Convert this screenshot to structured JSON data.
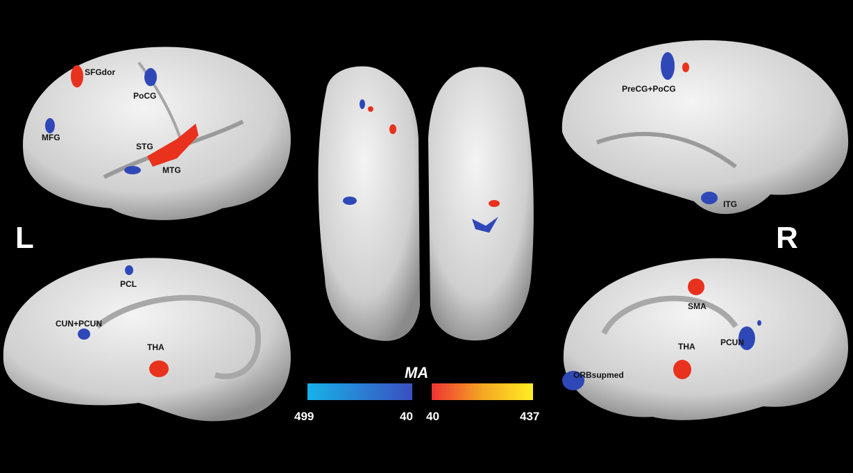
{
  "hemisphere_labels": {
    "left": "L",
    "right": "R"
  },
  "regions": {
    "left_lateral": [
      "SFGdor",
      "PoCG",
      "MFG",
      "STG",
      "MTG"
    ],
    "right_lateral": [
      "PreCG+PoCG",
      "ITG"
    ],
    "left_medial": [
      "PCL",
      "CUN+PCUN",
      "THA"
    ],
    "right_medial": [
      "SMA",
      "PCUN",
      "THA",
      "ORBsupmed"
    ]
  },
  "colorbar": {
    "title": "MA",
    "negative": {
      "min_label": "499",
      "max_label": "40",
      "colors": [
        "#17b2e8",
        "#3b4fc0"
      ]
    },
    "positive": {
      "min_label": "40",
      "max_label": "437",
      "colors": [
        "#ee3333",
        "#ffee22"
      ]
    }
  },
  "colors": {
    "decrease": "#2f48b8",
    "increase": "#e8321e",
    "surface": "#d6d6d6",
    "background": "#000000"
  }
}
